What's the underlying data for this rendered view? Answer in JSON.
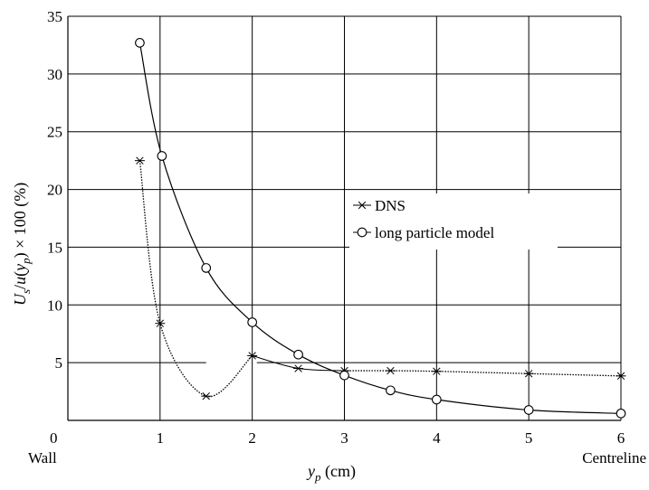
{
  "chart_data": {
    "type": "line",
    "title": "",
    "xlabel": "y_p (cm)",
    "ylabel": "U_s/u(y_p) × 100 (%)",
    "xlim": [
      0,
      6
    ],
    "ylim": [
      0,
      35
    ],
    "xticks": [
      0,
      1,
      2,
      3,
      4,
      5,
      6
    ],
    "yticks": [
      5,
      10,
      15,
      20,
      25,
      30,
      35
    ],
    "x_extra_labels": {
      "left": "Wall",
      "right": "Centreline"
    },
    "grid": true,
    "legend_position": "center-right",
    "series": [
      {
        "name": "DNS",
        "marker": "asterisk",
        "x": [
          0.78,
          1.0,
          1.5,
          2.0,
          2.5,
          3.0,
          3.5,
          4.0,
          5.0,
          6.0
        ],
        "y": [
          22.5,
          8.4,
          2.1,
          5.6,
          4.5,
          4.3,
          4.3,
          4.25,
          4.05,
          3.85
        ]
      },
      {
        "name": "long particle model",
        "marker": "circle",
        "x": [
          0.78,
          1.02,
          1.5,
          2.0,
          2.5,
          3.0,
          3.5,
          4.0,
          5.0,
          6.0
        ],
        "y": [
          32.7,
          22.9,
          13.2,
          8.5,
          5.7,
          3.9,
          2.6,
          1.8,
          0.9,
          0.6
        ]
      }
    ]
  }
}
